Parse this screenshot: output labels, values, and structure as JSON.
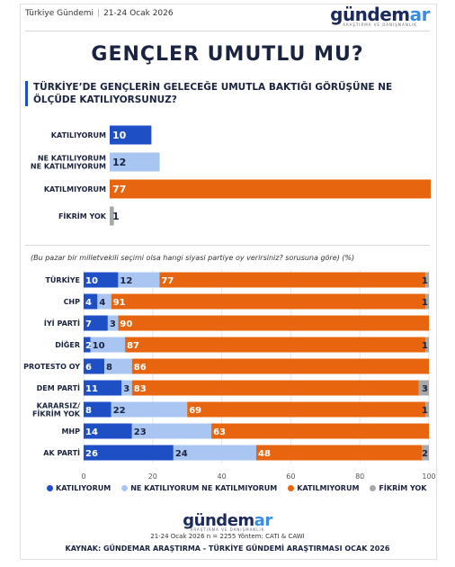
{
  "header": {
    "brand_label": "Türkiye Gündemi",
    "date": "21-24 Ocak 2026"
  },
  "logo": {
    "word_main": "gündem",
    "word_accent": "ar",
    "tagline": "ARAŞTIRMA VE DANIŞMANLIK"
  },
  "title": "GENÇLER UMUTLU MU?",
  "question": "TÜRKİYE’DE GENÇLERİN GELECEĞE UMUTLA BAKTIĞI GÖRÜŞÜNE NE ÖLÇÜDE KATILIYORSUNUZ?",
  "colors": {
    "agree": "#1f4fc4",
    "neutral": "#a9c6f2",
    "disagree": "#e8650f",
    "none": "#a8a8a8"
  },
  "chart_data": [
    {
      "type": "bar",
      "orientation": "horizontal",
      "categories": [
        "KATILIYORUM",
        "NE KATILIYORUM NE KATILMIYORUM",
        "KATILMIYORUM",
        "FİKRİM YOK"
      ],
      "category_lines": [
        [
          "KATILIYORUM"
        ],
        [
          "NE KATILIYORUM",
          "NE KATILMIYORUM"
        ],
        [
          "KATILMIYORUM"
        ],
        [
          "FİKRİM YOK"
        ]
      ],
      "values": [
        10,
        12,
        77,
        1
      ],
      "value_labels": [
        "10",
        "12",
        "77",
        "1"
      ]
    },
    {
      "type": "bar",
      "orientation": "horizontal",
      "stacked": true,
      "subtitle": "(Bu pazar bir milletvekili seçimi olsa hangi siyasi partiye oy verirsiniz? sorusuna göre) (%)",
      "categories": [
        "TÜRKİYE",
        "CHP",
        "İYİ PARTİ",
        "DİĞER",
        "PROTESTO OY",
        "DEM PARTİ",
        "KARARSIZ/ FİKRİM YOK",
        "MHP",
        "AK PARTİ"
      ],
      "category_lines": [
        [
          "TÜRKİYE"
        ],
        [
          "CHP"
        ],
        [
          "İYİ PARTİ"
        ],
        [
          "DİĞER"
        ],
        [
          "PROTESTO OY"
        ],
        [
          "DEM PARTİ"
        ],
        [
          "KARARSIZ/",
          "FİKRİM YOK"
        ],
        [
          "MHP"
        ],
        [
          "AK PARTİ"
        ]
      ],
      "series": [
        {
          "name": "KATILIYORUM",
          "values": [
            10,
            4,
            7,
            2,
            6,
            11,
            8,
            14,
            26
          ]
        },
        {
          "name": "NE KATILIYORUM NE KATILMIYORUM",
          "values": [
            12,
            4,
            3,
            10,
            8,
            3,
            22,
            23,
            24
          ]
        },
        {
          "name": "KATILMIYORUM",
          "values": [
            77,
            91,
            90,
            87,
            86,
            83,
            69,
            63,
            48
          ]
        },
        {
          "name": "FİKRİM YOK",
          "values": [
            1,
            1,
            0,
            1,
            0,
            3,
            1,
            0,
            2
          ]
        }
      ],
      "xlim": [
        0,
        100
      ],
      "xticks": [
        0,
        20,
        40,
        60,
        80,
        100
      ],
      "legend": "bottom"
    }
  ],
  "footer": {
    "meta": "21-24 Ocak 2026 n = 2255 Yöntem: CATI & CAWI",
    "source": "KAYNAK: GÜNDEMAR ARAŞTIRMA - TÜRKİYE GÜNDEMİ ARAŞTIRMASI OCAK 2026"
  }
}
